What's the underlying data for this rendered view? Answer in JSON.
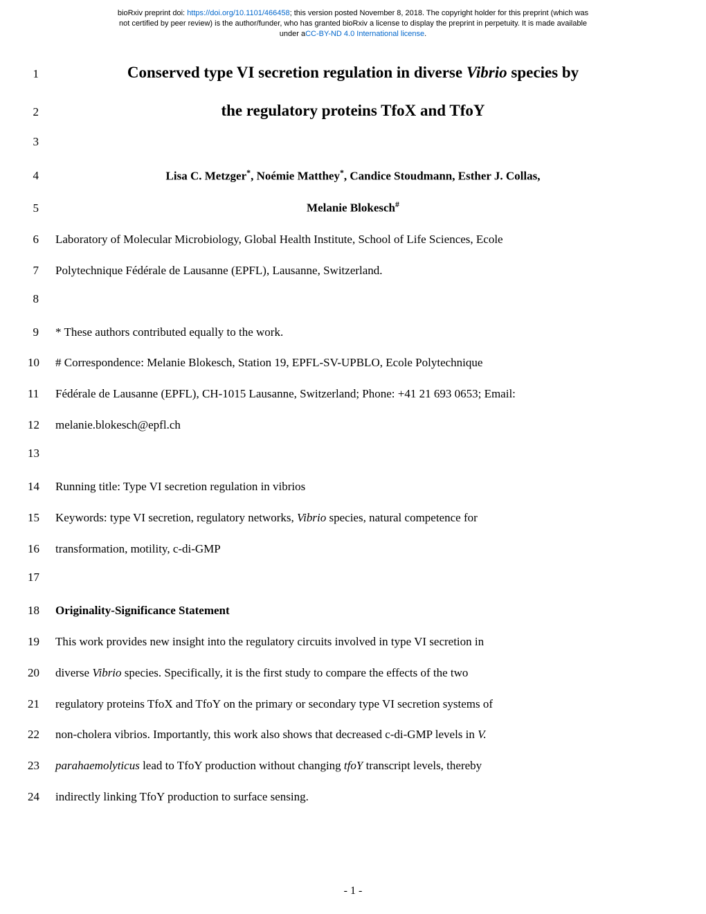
{
  "preprint": {
    "line1_prefix": "bioRxiv preprint doi: ",
    "doi_url": "https://doi.org/10.1101/466458",
    "line1_suffix": "; this version posted November 8, 2018. The copyright holder for this preprint (which was",
    "line2": "not certified by peer review) is the author/funder, who has granted bioRxiv a license to display the preprint in perpetuity. It is made available",
    "line3_prefix": "under a",
    "license_text": "CC-BY-ND 4.0 International license",
    "line3_suffix": "."
  },
  "lines": {
    "1": {
      "num": "1",
      "type": "title",
      "text": "Conserved type VI secretion regulation in diverse "
    },
    "1_italic": "Vibrio",
    "1_suffix": " species by",
    "2": {
      "num": "2",
      "type": "title",
      "text": "the regulatory proteins TfoX and TfoY"
    },
    "3": {
      "num": "3",
      "text": ""
    },
    "4": {
      "num": "4",
      "type": "author"
    },
    "4_a1": "Lisa C. Metzger",
    "4_sup1": "*",
    "4_a2": ", Noémie Matthey",
    "4_sup2": "*",
    "4_a3": ", Candice Stoudmann, Esther J. Collas,",
    "5": {
      "num": "5",
      "type": "author2"
    },
    "5_text": "Melanie Blokesch",
    "5_sup": "#",
    "6": {
      "num": "6",
      "text": "Laboratory of Molecular Microbiology, Global Health Institute, School of Life Sciences, Ecole"
    },
    "7": {
      "num": "7",
      "text": "Polytechnique Fédérale de Lausanne (EPFL), Lausanne, Switzerland."
    },
    "8": {
      "num": "8",
      "text": ""
    },
    "9": {
      "num": "9",
      "text": "* These authors contributed equally to the work."
    },
    "10": {
      "num": "10",
      "text": "# Correspondence: Melanie Blokesch, Station 19, EPFL-SV-UPBLO, Ecole Polytechnique",
      "justified": true
    },
    "11": {
      "num": "11",
      "text": "Fédérale de Lausanne (EPFL), CH-1015 Lausanne, Switzerland; Phone: +41 21 693 0653; Email:"
    },
    "12": {
      "num": "12",
      "text": "melanie.blokesch@epfl.ch"
    },
    "13": {
      "num": "13",
      "text": ""
    },
    "14": {
      "num": "14",
      "text": "Running title:  Type VI secretion regulation in vibrios"
    },
    "15": {
      "num": "15",
      "prefix": "Keywords: type VI secretion, regulatory networks, ",
      "italic": "Vibrio",
      "suffix": " species, natural competence for",
      "justified": true
    },
    "16": {
      "num": "16",
      "text": "transformation, motility, c-di-GMP"
    },
    "17": {
      "num": "17",
      "text": ""
    },
    "18": {
      "num": "18",
      "text": "Originality-Significance Statement",
      "bold": true
    },
    "19": {
      "num": "19",
      "text": "This work provides new insight into the regulatory circuits involved in type VI secretion in",
      "justified": true
    },
    "20": {
      "num": "20",
      "prefix": "diverse ",
      "italic": "Vibrio",
      "suffix": " species. Specifically, it is the first study to compare the effects of the two",
      "justified": true
    },
    "21": {
      "num": "21",
      "text": "regulatory proteins TfoX and TfoY on the primary or secondary type VI secretion systems of",
      "justified": true
    },
    "22": {
      "num": "22",
      "prefix": "non-cholera vibrios. Importantly, this work also shows that decreased c-di-GMP levels in ",
      "italic": "V.",
      "suffix": "",
      "justified": true
    },
    "23": {
      "num": "23",
      "italic_prefix": "parahaemolyticus",
      "mid": " lead to TfoY production without changing ",
      "italic2": "tfoY",
      "suffix": " transcript levels, thereby",
      "justified": true
    },
    "24": {
      "num": "24",
      "text": "indirectly linking TfoY production to surface sensing."
    }
  },
  "page_num": "- 1 -"
}
